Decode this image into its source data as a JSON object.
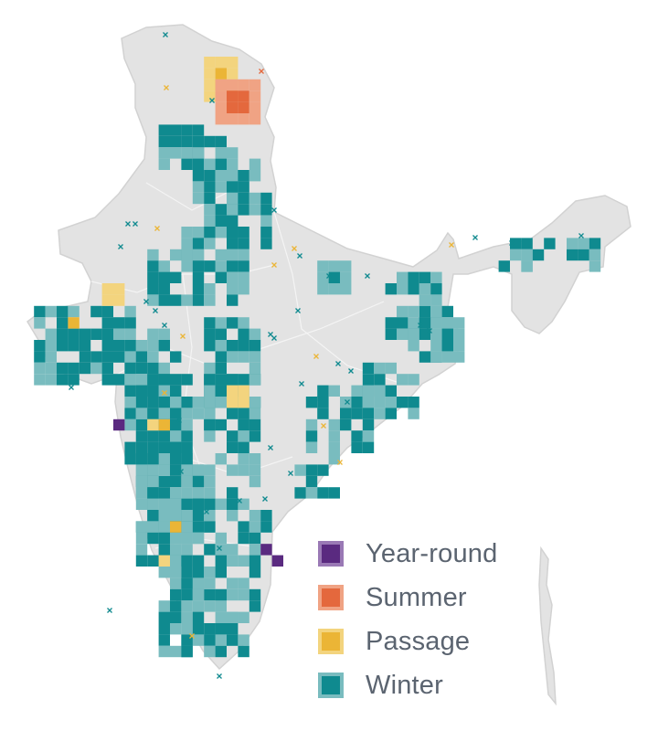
{
  "map": {
    "legend": [
      {
        "key": "year_round",
        "label": "Year-round",
        "fill": "#5a2a80",
        "edge": "#9a79b5"
      },
      {
        "key": "summer",
        "label": "Summer",
        "fill": "#e4683d",
        "edge": "#f0a384"
      },
      {
        "key": "passage",
        "label": "Passage",
        "fill": "#ebb536",
        "edge": "#f3d47e"
      },
      {
        "key": "winter",
        "label": "Winter",
        "fill": "#0f8a8f",
        "edge": "#79bcbf"
      }
    ],
    "colors": {
      "land": "#e3e3e3",
      "land_edge": "#d2d2d2",
      "background": "#ffffff"
    }
  }
}
